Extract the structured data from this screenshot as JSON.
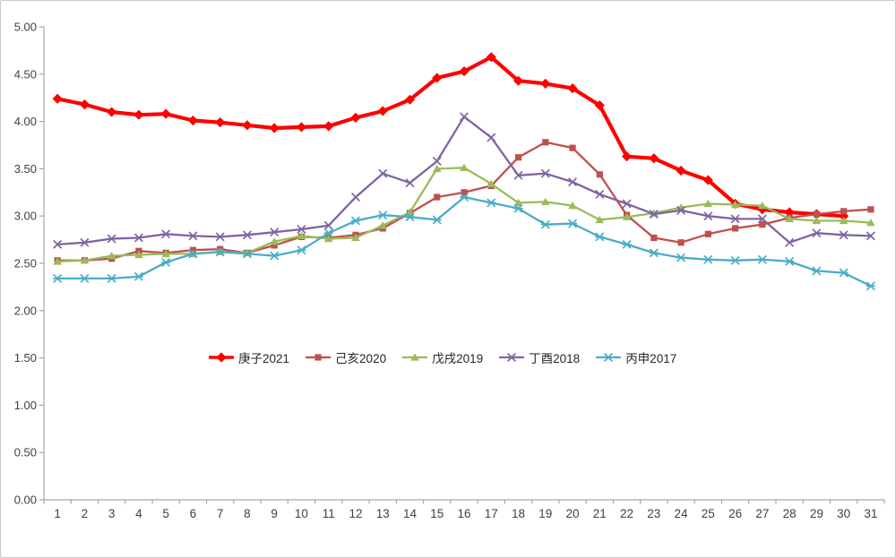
{
  "chart": {
    "background": "#FFFFFF",
    "frame_border_color": "#C9C9C9",
    "axis_color": "#A6A6A6",
    "tick_label_color": "#404040",
    "legend_text_color": "#262626"
  },
  "chart_data": {
    "type": "line",
    "title": "",
    "xlabel": "",
    "ylabel": "",
    "grid": false,
    "legend_position": "inside-middle-horizontal",
    "categories": [
      1,
      2,
      3,
      4,
      5,
      6,
      7,
      8,
      9,
      10,
      11,
      12,
      13,
      14,
      15,
      16,
      17,
      18,
      19,
      20,
      21,
      22,
      23,
      24,
      25,
      26,
      27,
      28,
      29,
      30,
      31
    ],
    "ylim": [
      0,
      5
    ],
    "ytick_step": 0.5,
    "ytick_labels": [
      "0.00",
      "0.50",
      "1.00",
      "1.50",
      "2.00",
      "2.50",
      "3.00",
      "3.50",
      "4.00",
      "4.50",
      "5.00"
    ],
    "series": [
      {
        "name": "庚子2021",
        "color": "#FF0000",
        "marker": "diamond",
        "line_width": 4.2,
        "values": [
          4.24,
          4.18,
          4.1,
          4.07,
          4.08,
          4.01,
          3.99,
          3.96,
          3.93,
          3.94,
          3.95,
          4.04,
          4.11,
          4.23,
          4.46,
          4.53,
          4.68,
          4.43,
          4.4,
          4.35,
          4.17,
          3.63,
          3.61,
          3.48,
          3.38,
          3.13,
          3.07,
          3.04,
          3.02,
          3.0,
          null
        ]
      },
      {
        "name": "己亥2020",
        "color": "#C0504D",
        "marker": "square",
        "line_width": 2.3,
        "values": [
          2.53,
          2.53,
          2.55,
          2.63,
          2.61,
          2.64,
          2.65,
          2.61,
          2.69,
          2.78,
          2.77,
          2.8,
          2.87,
          3.03,
          3.2,
          3.25,
          3.32,
          3.62,
          3.78,
          3.72,
          3.44,
          3.01,
          2.77,
          2.72,
          2.81,
          2.87,
          2.91,
          2.98,
          3.02,
          3.05,
          3.07
        ]
      },
      {
        "name": "戊戌2019",
        "color": "#9BBB59",
        "marker": "triangle",
        "line_width": 2.3,
        "values": [
          2.52,
          2.53,
          2.58,
          2.59,
          2.6,
          2.6,
          2.62,
          2.61,
          2.73,
          2.79,
          2.76,
          2.77,
          2.9,
          3.04,
          3.5,
          3.51,
          3.34,
          3.14,
          3.15,
          3.11,
          2.96,
          2.99,
          3.03,
          3.09,
          3.13,
          3.12,
          3.11,
          2.97,
          2.95,
          2.95,
          2.93
        ]
      },
      {
        "name": "丁酉2018",
        "color": "#8064A2",
        "marker": "x",
        "line_width": 2.3,
        "values": [
          2.7,
          2.72,
          2.76,
          2.77,
          2.81,
          2.79,
          2.78,
          2.8,
          2.83,
          2.86,
          2.9,
          3.2,
          3.45,
          3.35,
          3.58,
          4.05,
          3.83,
          3.43,
          3.45,
          3.36,
          3.23,
          3.13,
          3.02,
          3.06,
          3.0,
          2.97,
          2.97,
          2.72,
          2.82,
          2.8,
          2.79
        ]
      },
      {
        "name": "丙申2017",
        "color": "#4BACC6",
        "marker": "asterisk",
        "line_width": 2.3,
        "values": [
          2.34,
          2.34,
          2.34,
          2.36,
          2.51,
          2.6,
          2.62,
          2.6,
          2.58,
          2.64,
          2.82,
          2.95,
          3.01,
          2.99,
          2.96,
          3.2,
          3.14,
          3.08,
          2.91,
          2.92,
          2.78,
          2.7,
          2.61,
          2.56,
          2.54,
          2.53,
          2.54,
          2.52,
          2.42,
          2.4,
          2.26
        ]
      }
    ]
  }
}
